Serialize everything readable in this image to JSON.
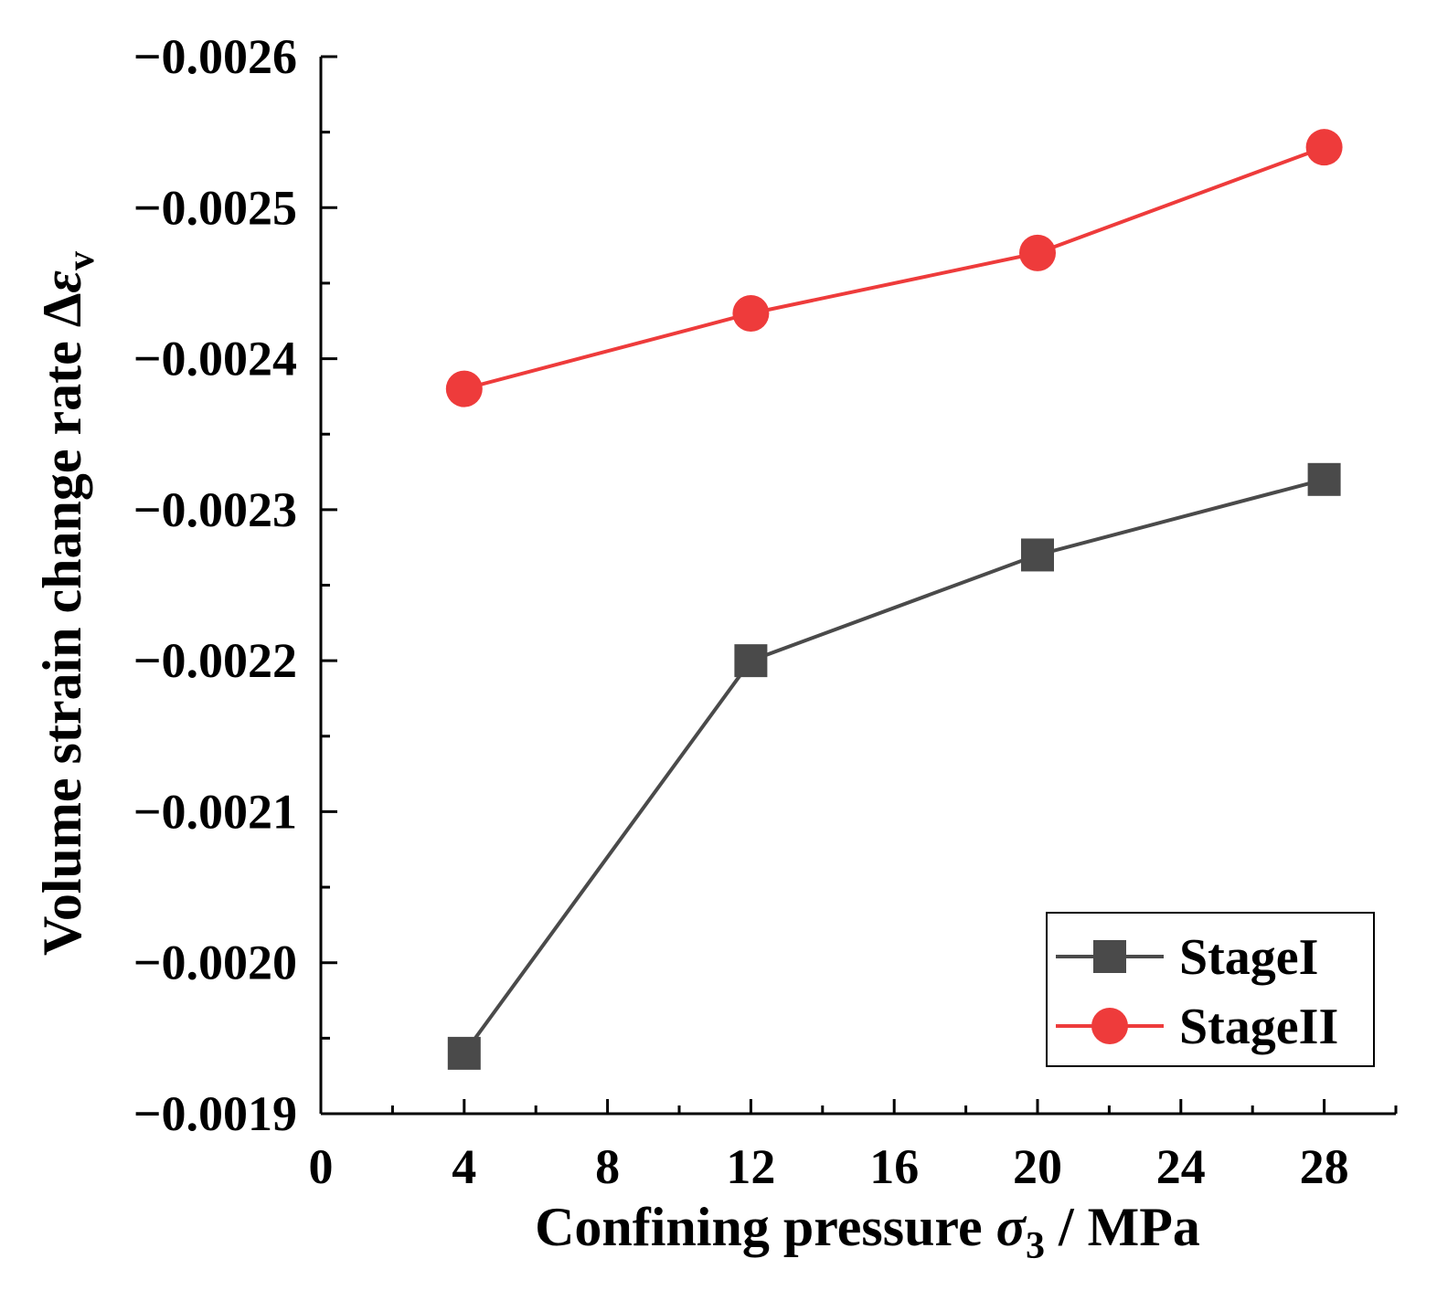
{
  "chart_data": {
    "type": "line",
    "xlabel": {
      "main": "Confining pressure ",
      "symbol": "σ",
      "subscript": "3",
      "unit": " / MPa"
    },
    "ylabel": {
      "main": "Volume strain change rate Δ",
      "symbol": "ε",
      "subscript": "v"
    },
    "xlim": [
      0,
      30
    ],
    "ylim": [
      -0.0019,
      -0.0026
    ],
    "x_axis_reversed": false,
    "y_axis_note": "values become more negative upward",
    "x_ticks": [
      0,
      4,
      8,
      12,
      16,
      20,
      24,
      28
    ],
    "x_tick_labels": [
      "0",
      "4",
      "8",
      "12",
      "16",
      "20",
      "24",
      "28"
    ],
    "y_ticks": [
      -0.0019,
      -0.002,
      -0.0021,
      -0.0022,
      -0.0023,
      -0.0024,
      -0.0025,
      -0.0026
    ],
    "y_tick_labels": [
      "−0.0019",
      "−0.0020",
      "−0.0021",
      "−0.0022",
      "−0.0023",
      "−0.0024",
      "−0.0025",
      "−0.0026"
    ],
    "grid": false,
    "legend_position": "bottom-right",
    "series": [
      {
        "name": "StageI",
        "marker": "square",
        "color": "#4a4a4a",
        "x": [
          4,
          12,
          20,
          28
        ],
        "y": [
          -0.00194,
          -0.0022,
          -0.00227,
          -0.00232
        ]
      },
      {
        "name": "StageII",
        "marker": "circle",
        "color": "#ee3b3b",
        "x": [
          4,
          12,
          20,
          28
        ],
        "y": [
          -0.00238,
          -0.00243,
          -0.00247,
          -0.00254
        ]
      }
    ]
  }
}
